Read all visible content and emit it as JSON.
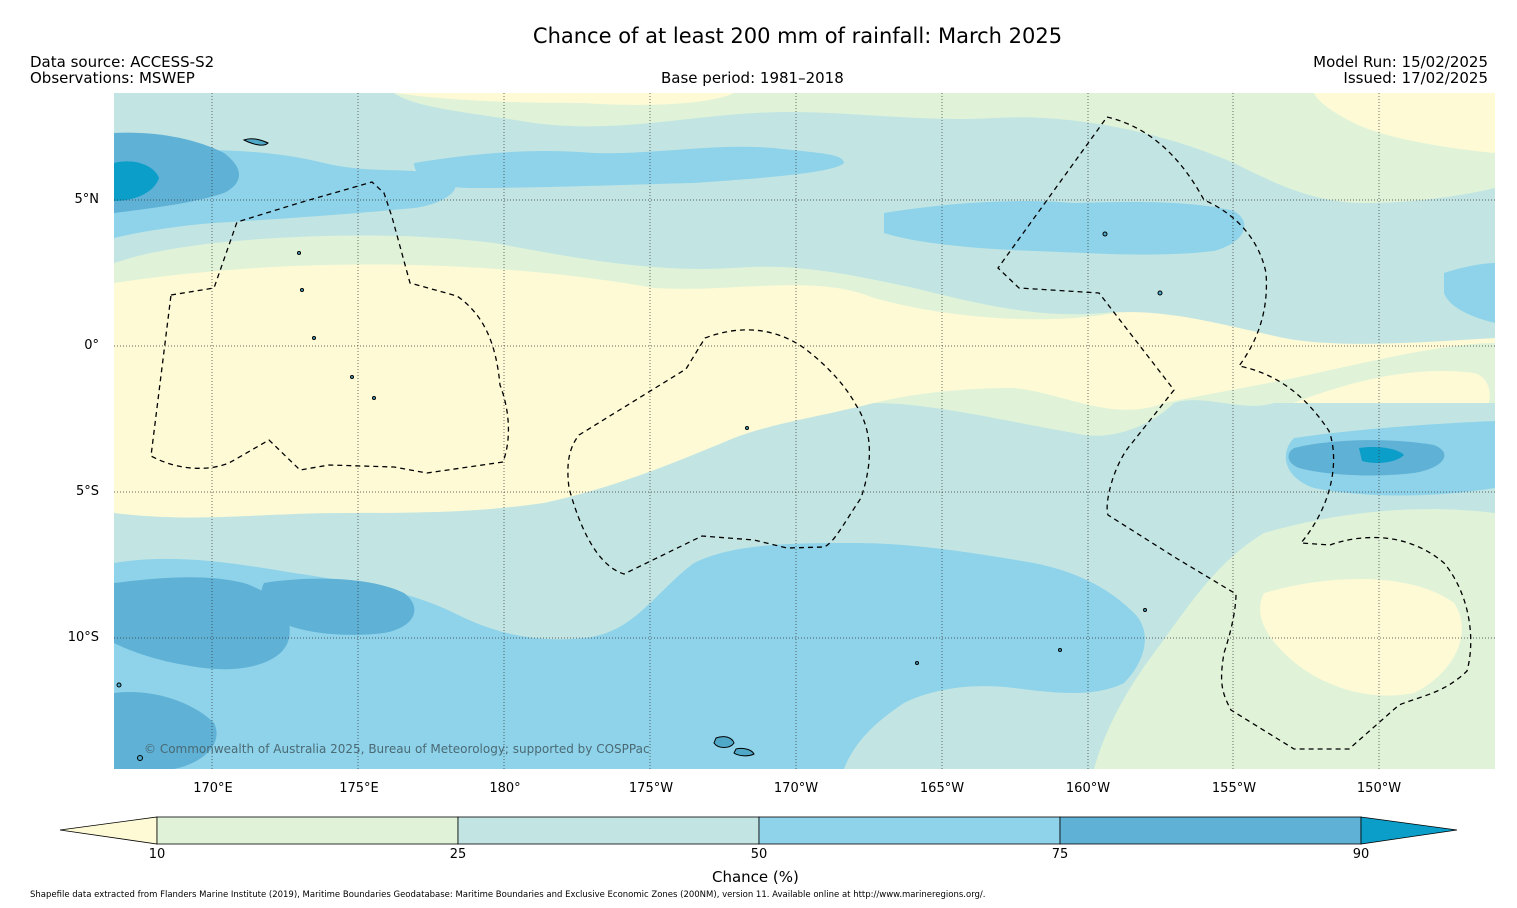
{
  "title": "Chance of at least 200 mm of rainfall: March 2025",
  "header": {
    "data_source": "Data source: ACCESS-S2",
    "observations": "Observations: MSWEP",
    "base_period": "Base period: 1981–2018",
    "model_run": "Model Run: 15/02/2025",
    "issued": "Issued: 17/02/2025"
  },
  "map": {
    "lat_labels": [
      "5°N",
      "0°",
      "5°S",
      "10°S"
    ],
    "lon_labels": [
      "170°E",
      "175°E",
      "180°",
      "175°W",
      "170°W",
      "165°W",
      "160°W",
      "155°W",
      "150°W"
    ],
    "copyright": "© Commonwealth of Australia 2025, Bureau of Meteorology; supported by COSPPac"
  },
  "colorbar": {
    "label": "Chance (%)",
    "ticks": [
      "10",
      "25",
      "50",
      "75",
      "90"
    ],
    "colors": {
      "below_10": "#fefad6",
      "10_25": "#e0f3d8",
      "25_50": "#c2e5e3",
      "50_75": "#8fd3ea",
      "75_90": "#5fb1d6",
      "above_90": "#0b9ec9"
    }
  },
  "footnote": "Shapefile data extracted from Flanders Marine Institute (2019), Maritime Boundaries Geodatabase: Maritime Boundaries and Exclusive Economic Zones (200NM), version 11. Available online at http://www.marineregions.org/."
}
